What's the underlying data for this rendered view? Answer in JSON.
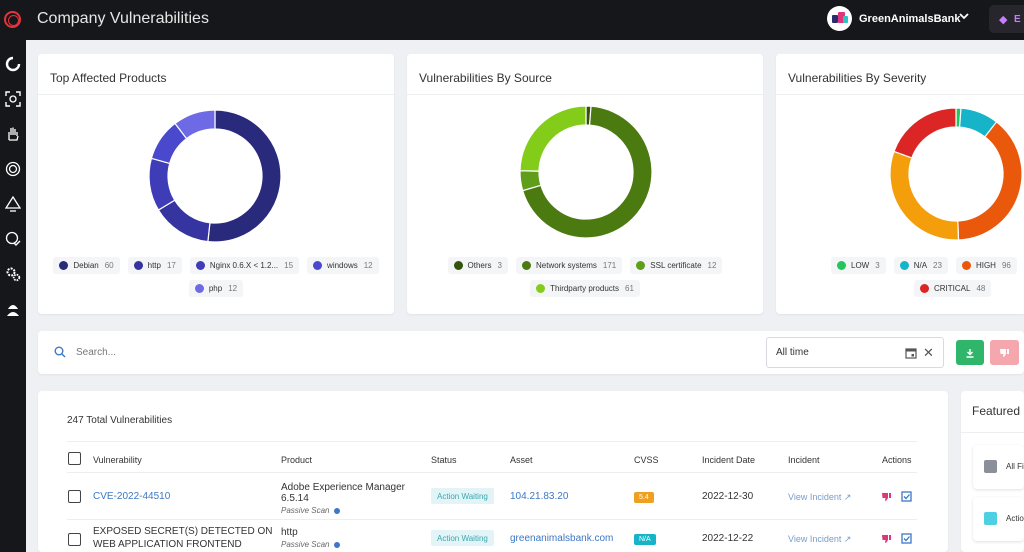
{
  "app": {
    "title": "Company Vulnerabilities"
  },
  "header": {
    "org_name": "GreenAnimalsBank",
    "plan_badge_text": "E"
  },
  "sidebar": {
    "icons": [
      "spinner-icon",
      "scan-icon",
      "hand-icon",
      "shield-icon",
      "monitor-alert-icon",
      "globe-check-icon",
      "gears-icon",
      "hacker-icon"
    ]
  },
  "charts": {
    "products": {
      "title": "Top Affected Products",
      "legend": [
        {
          "label": "Debian",
          "value": "60",
          "color": "#2a2a7c"
        },
        {
          "label": "http",
          "value": "17",
          "color": "#3534a0"
        },
        {
          "label": "Nginx 0.6.X < 1.2...",
          "value": "15",
          "color": "#3f3cb8"
        },
        {
          "label": "windows",
          "value": "12",
          "color": "#4a48cc"
        },
        {
          "label": "php",
          "value": "12",
          "color": "#6e6ae6"
        }
      ]
    },
    "source": {
      "title": "Vulnerabilities By Source",
      "legend": [
        {
          "label": "Others",
          "value": "3",
          "color": "#35520f"
        },
        {
          "label": "Network systems",
          "value": "171",
          "color": "#4a7a10"
        },
        {
          "label": "SSL certificate",
          "value": "12",
          "color": "#5f9d1a"
        },
        {
          "label": "Thirdparty products",
          "value": "61",
          "color": "#84cc1a"
        }
      ]
    },
    "severity": {
      "title": "Vulnerabilities By Severity",
      "legend": [
        {
          "label": "LOW",
          "value": "3",
          "color": "#22c55e"
        },
        {
          "label": "N/A",
          "value": "23",
          "color": "#17b3c9"
        },
        {
          "label": "HIGH",
          "value": "96",
          "color": "#ea580c"
        },
        {
          "label": "",
          "value": "",
          "color": "#f59e0b"
        },
        {
          "label": "CRITICAL",
          "value": "48",
          "color": "#dc2626"
        }
      ]
    }
  },
  "chart_data": [
    {
      "type": "pie",
      "title": "Top Affected Products",
      "categories": [
        "Debian",
        "http",
        "Nginx 0.6.X < 1.2...",
        "windows",
        "php"
      ],
      "values": [
        60,
        17,
        15,
        12,
        12
      ],
      "colors": [
        "#2a2a7c",
        "#3534a0",
        "#3f3cb8",
        "#4a48cc",
        "#6e6ae6"
      ],
      "donut": true,
      "legend": "bottom"
    },
    {
      "type": "pie",
      "title": "Vulnerabilities By Source",
      "categories": [
        "Others",
        "Network systems",
        "SSL certificate",
        "Thirdparty products"
      ],
      "values": [
        3,
        171,
        12,
        61
      ],
      "colors": [
        "#35520f",
        "#4a7a10",
        "#5f9d1a",
        "#84cc1a"
      ],
      "donut": true,
      "legend": "bottom"
    },
    {
      "type": "pie",
      "title": "Vulnerabilities By Severity",
      "categories": [
        "LOW",
        "N/A",
        "HIGH",
        "",
        "CRITICAL"
      ],
      "values": [
        3,
        23,
        96,
        77,
        48
      ],
      "colors": [
        "#22c55e",
        "#17b3c9",
        "#ea580c",
        "#f59e0b",
        "#dc2626"
      ],
      "donut": true,
      "legend": "bottom"
    }
  ],
  "search": {
    "placeholder": "Search...",
    "date_filter_value": "All time"
  },
  "table": {
    "total_label": "247 Total Vulnerabilities",
    "headers": {
      "vulnerability": "Vulnerability",
      "product": "Product",
      "status": "Status",
      "asset": "Asset",
      "cvss": "CVSS",
      "incident_date": "Incident Date",
      "incident": "Incident",
      "actions": "Actions"
    },
    "rows": [
      {
        "vulnerability": "CVE-2022-44510",
        "product": "Adobe Experience Manager 6.5.14",
        "scan_type": "Passive Scan",
        "status": "Action Waiting",
        "asset": "104.21.83.20",
        "cvss": "5.4",
        "cvss_color": "#f0a020",
        "incident_date": "2022-12-30",
        "incident_link": "View Incident"
      },
      {
        "vulnerability": "EXPOSED SECRET(S) DETECTED ON WEB APPLICATION FRONTEND",
        "product": "http",
        "scan_type": "Passive Scan",
        "status": "Action Waiting",
        "asset": "greenanimalsbank.com",
        "cvss": "N/A",
        "cvss_color": "#17b3c9",
        "incident_date": "2022-12-22",
        "incident_link": "View Incident"
      }
    ]
  },
  "featured": {
    "title": "Featured",
    "items": [
      {
        "label": "All Fi",
        "color": "#8b8f99"
      },
      {
        "label": "Actio",
        "color": "#4dd0e1"
      }
    ]
  }
}
